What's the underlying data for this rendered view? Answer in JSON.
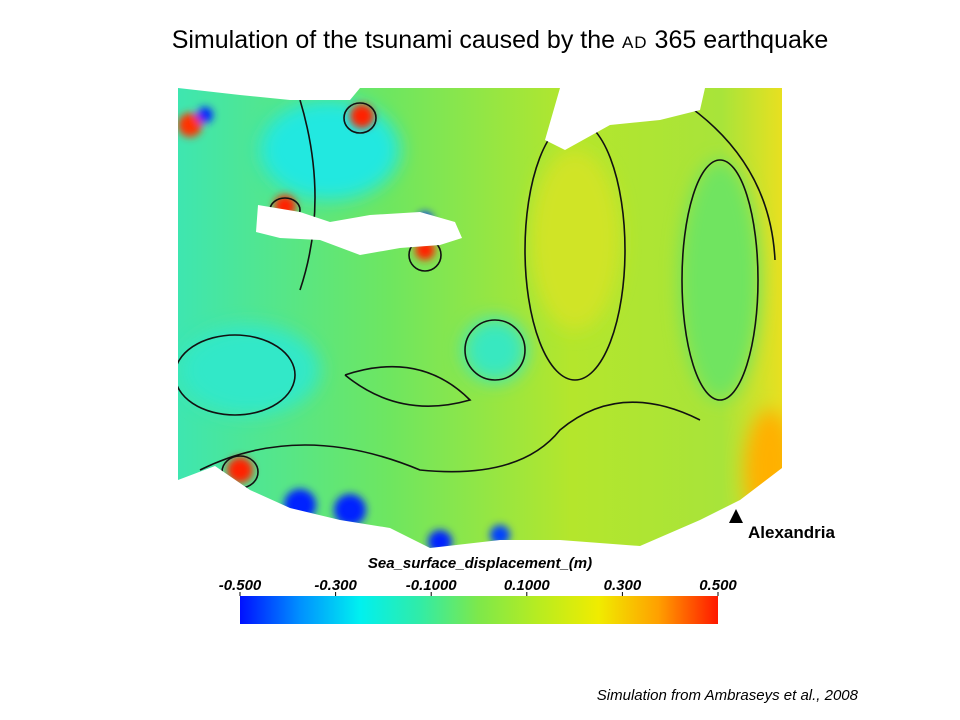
{
  "title_start": "Simulation of the tsunami caused by the ",
  "title_era": "AD",
  "title_end": " 365 earthquake",
  "colorbar": {
    "label": "Sea_surface_displacement_(m)",
    "range": [
      -0.5,
      0.5
    ],
    "ticks": [
      {
        "value": -0.5,
        "label": "-0.500"
      },
      {
        "value": -0.3,
        "label": "-0.300"
      },
      {
        "value": -0.1,
        "label": "-0.1000"
      },
      {
        "value": 0.1,
        "label": "0.1000"
      },
      {
        "value": 0.3,
        "label": "0.300"
      },
      {
        "value": 0.5,
        "label": "0.500"
      }
    ],
    "colors": [
      "#0010ff",
      "#0090ff",
      "#00f0f0",
      "#30eca8",
      "#7ee84a",
      "#b8ec20",
      "#f0ec00",
      "#ffa000",
      "#ff1800"
    ]
  },
  "marker_label": "Alexandria",
  "credit": "Simulation from Ambraseys et al., 2008"
}
